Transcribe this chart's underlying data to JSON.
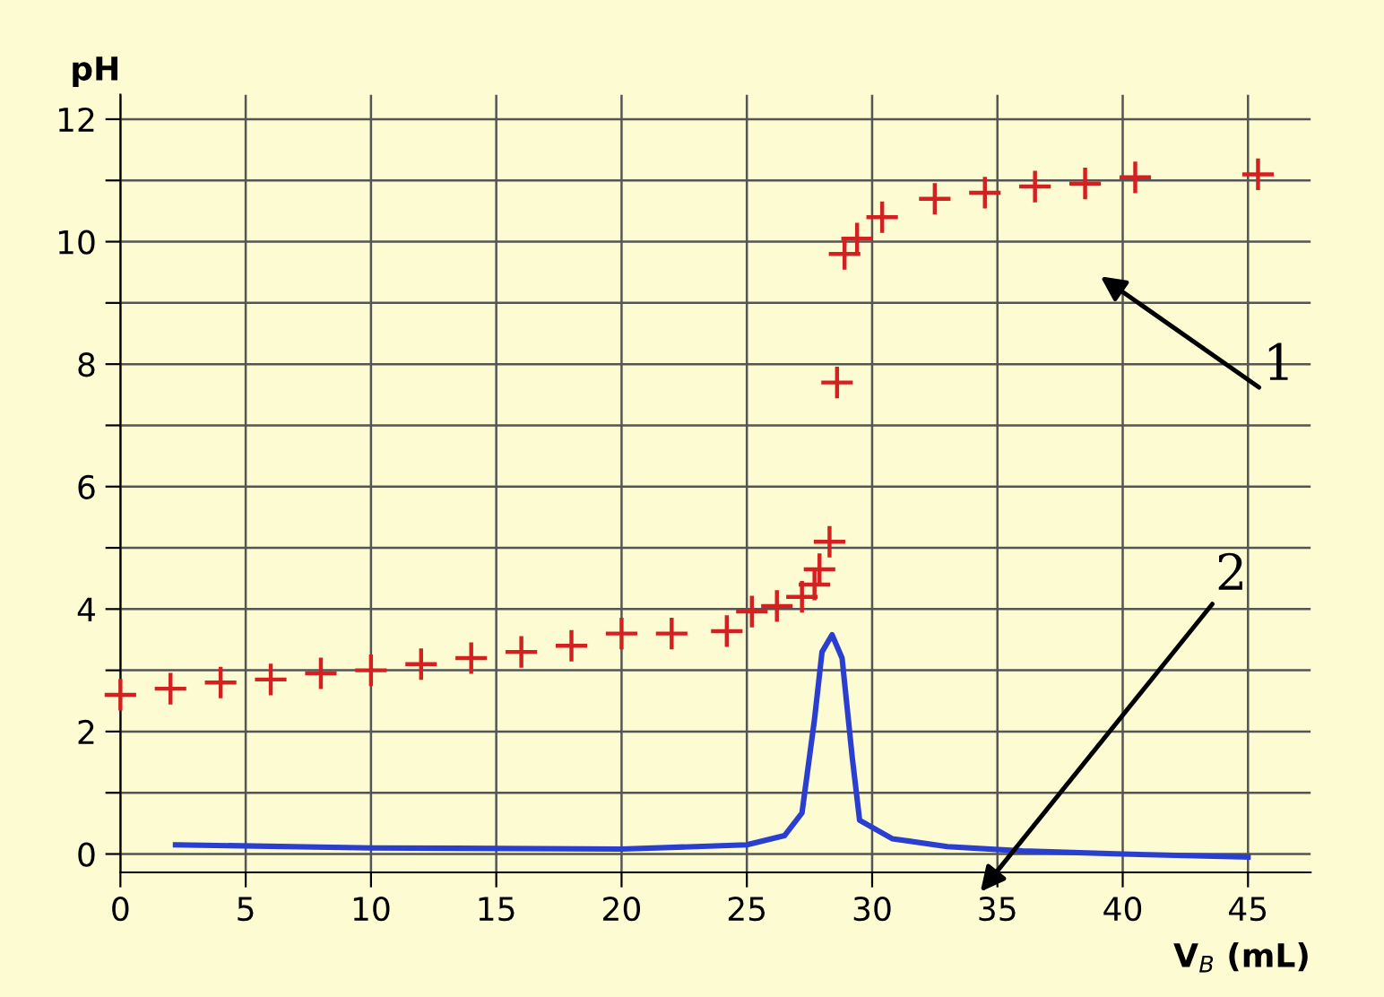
{
  "chart_data": {
    "type": "scatter",
    "xlabel": "V$_{B}$ (mL)",
    "ylabel": "pH",
    "xlim": [
      0,
      47.5
    ],
    "ylim": [
      -0.3,
      12.4
    ],
    "xticks": [
      0,
      5,
      10,
      15,
      20,
      25,
      30,
      35,
      40,
      45
    ],
    "yticks": [
      0,
      {
        "value": 1,
        "label": null
      },
      2,
      {
        "value": 3,
        "label": null
      },
      4,
      {
        "value": 5,
        "label": null
      },
      6,
      {
        "value": 7,
        "label": null
      },
      8,
      {
        "value": 9,
        "label": null
      },
      10,
      {
        "value": 11,
        "label": null
      },
      12
    ],
    "grid": true,
    "legend": false,
    "series": [
      {
        "marker": "cross",
        "color": "#d42020",
        "x": [
          0,
          2,
          4,
          6,
          8,
          10,
          12,
          14,
          16,
          18,
          20,
          22,
          24.2,
          25.2,
          26.2,
          27.2,
          27.7,
          27.9,
          28.3,
          28.6,
          28.9,
          29.4,
          30.4,
          32.5,
          34.5,
          36.5,
          38.5,
          40.5,
          45.4
        ],
        "values": [
          2.6,
          2.7,
          2.8,
          2.85,
          2.95,
          3.0,
          3.1,
          3.2,
          3.3,
          3.4,
          3.6,
          3.6,
          3.64,
          3.96,
          4.05,
          4.2,
          4.4,
          4.65,
          5.1,
          7.7,
          9.8,
          10.05,
          10.4,
          10.7,
          10.8,
          10.9,
          10.95,
          11.05,
          11.1
        ]
      },
      {
        "type": "line",
        "marker": "none",
        "line_style": "solid",
        "color": "#2a3fd0",
        "x": [
          2.2,
          10,
          20,
          25,
          26.5,
          27.2,
          27.7,
          28.0,
          28.4,
          28.8,
          29.2,
          29.5,
          30.8,
          33,
          36,
          40,
          45
        ],
        "values": [
          0.15,
          0.1,
          0.08,
          0.15,
          0.3,
          0.67,
          2.2,
          3.3,
          3.58,
          3.2,
          1.6,
          0.55,
          0.25,
          0.12,
          0.05,
          0.0,
          -0.05
        ]
      }
    ],
    "annotations": [
      "1",
      "2"
    ]
  }
}
